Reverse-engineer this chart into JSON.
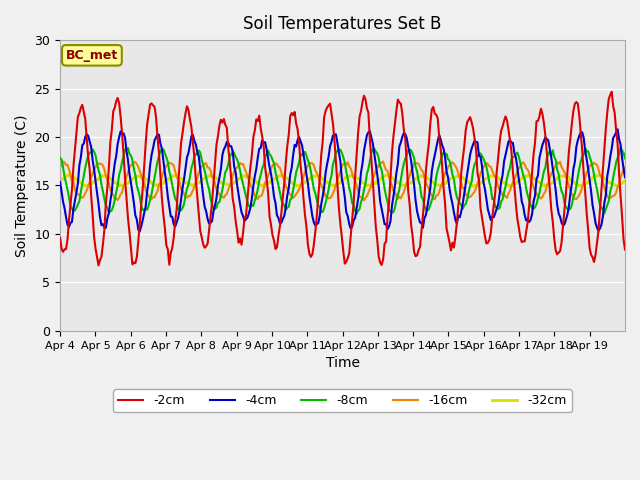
{
  "title": "Soil Temperatures Set B",
  "xlabel": "Time",
  "ylabel": "Soil Temperature (C)",
  "ylim": [
    0,
    30
  ],
  "yticks": [
    0,
    5,
    10,
    15,
    20,
    25,
    30
  ],
  "background_color": "#e8e8e8",
  "annotation_text": "BC_met",
  "annotation_bg": "#ffff99",
  "annotation_border": "#8B8B00",
  "lines": {
    "-2cm": {
      "color": "#dd0000",
      "lw": 1.5
    },
    "-4cm": {
      "color": "#0000cc",
      "lw": 1.5
    },
    "-8cm": {
      "color": "#00bb00",
      "lw": 1.5
    },
    "-16cm": {
      "color": "#ee8800",
      "lw": 1.5
    },
    "-32cm": {
      "color": "#dddd00",
      "lw": 2.0
    }
  },
  "xticklabels": [
    "Apr 4",
    "Apr 5",
    "Apr 6",
    "Apr 7",
    "Apr 8",
    "Apr 9",
    "Apr 10",
    "Apr 11",
    "Apr 12",
    "Apr 13",
    "Apr 14",
    "Apr 15",
    "Apr 16",
    "Apr 17",
    "Apr 18",
    "Apr 19"
  ],
  "n_days": 16,
  "pts_per_day": 24
}
